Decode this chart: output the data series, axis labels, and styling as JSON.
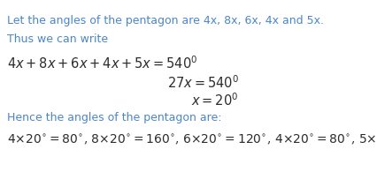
{
  "background_color": "#ffffff",
  "text_color_blue": "#4a86c8",
  "text_color_dark": "#2c2c2c",
  "line1": "Let the angles of the pentagon are 4x, 8x, 6x, 4x and 5x.",
  "line2": "Thus we can write",
  "line3": "Hence the angles of the pentagon are:",
  "figsize": [
    4.27,
    2.2
  ],
  "dpi": 100
}
